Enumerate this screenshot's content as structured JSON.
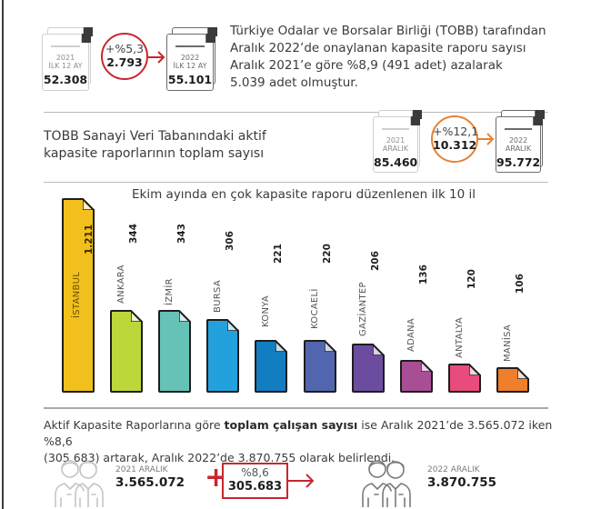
{
  "header": {
    "stack_2021": {
      "year": "2021",
      "period": "İLK 12 AY",
      "value": "52.308"
    },
    "change": {
      "percent": "+%5,3",
      "amount": "2.793",
      "color": "#c8262e"
    },
    "stack_2022": {
      "year": "2022",
      "period": "İLK 12 AY",
      "value": "55.101"
    },
    "paragraph_lines": [
      "Türkiye Odalar ve Borsalar Birliği (TOBB) tarafından",
      "Aralık 2022’de onaylanan kapasite raporu sayısı",
      "Aralık 2021’e göre %8,9 (491 adet) azalarak",
      "5.039 adet olmuştur."
    ]
  },
  "active_reports": {
    "title_lines": [
      "TOBB Sanayi Veri Tabanındaki aktif",
      "kapasite raporlarının toplam sayısı"
    ],
    "stack_2021": {
      "year": "2021",
      "period": "ARALIK",
      "value": "85.460"
    },
    "change": {
      "percent": "+%12,1",
      "amount": "10.312",
      "color": "#e9802f"
    },
    "stack_2022": {
      "year": "2022",
      "period": "ARALIK",
      "value": "95.772"
    }
  },
  "chart_data": {
    "type": "bar",
    "title": "Ekim ayında en çok kapasite raporu düzenlenen ilk 10 il",
    "categories": [
      "İSTANBUL",
      "ANKARA",
      "İZMİR",
      "BURSA",
      "KONYA",
      "KOCAELİ",
      "GAZİANTEP",
      "ADANA",
      "ANTALYA",
      "MANİSA"
    ],
    "values": [
      1211,
      344,
      343,
      306,
      221,
      220,
      206,
      136,
      120,
      106
    ],
    "value_labels": [
      "1.211",
      "344",
      "343",
      "306",
      "221",
      "220",
      "206",
      "136",
      "120",
      "106"
    ],
    "colors": [
      "#f2c01c",
      "#bcd739",
      "#66c2b6",
      "#23a1dc",
      "#137dc2",
      "#5266b0",
      "#6c4c9f",
      "#a84e94",
      "#e94b7c",
      "#ef7f2a"
    ],
    "xlabel": "",
    "ylabel": "",
    "grid": false,
    "legend": "none"
  },
  "employees": {
    "paragraph": {
      "pre": "Aktif Kapasite Raporlarına göre ",
      "bold": "toplam çalışan sayısı",
      "post_line1": " ise Aralık 2021’de 3.565.072 iken %8,6",
      "line2": "(305.683) artarak, Aralık 2022’de 3.870.755 olarak belirlendi."
    },
    "left": {
      "label": "2021 ARALIK",
      "value": "3.565.072"
    },
    "plus_sign": "+",
    "change": {
      "percent": "%8,6",
      "amount": "305.683",
      "color": "#c8262e"
    },
    "right": {
      "label": "2022 ARALIK",
      "value": "3.870.755"
    }
  }
}
